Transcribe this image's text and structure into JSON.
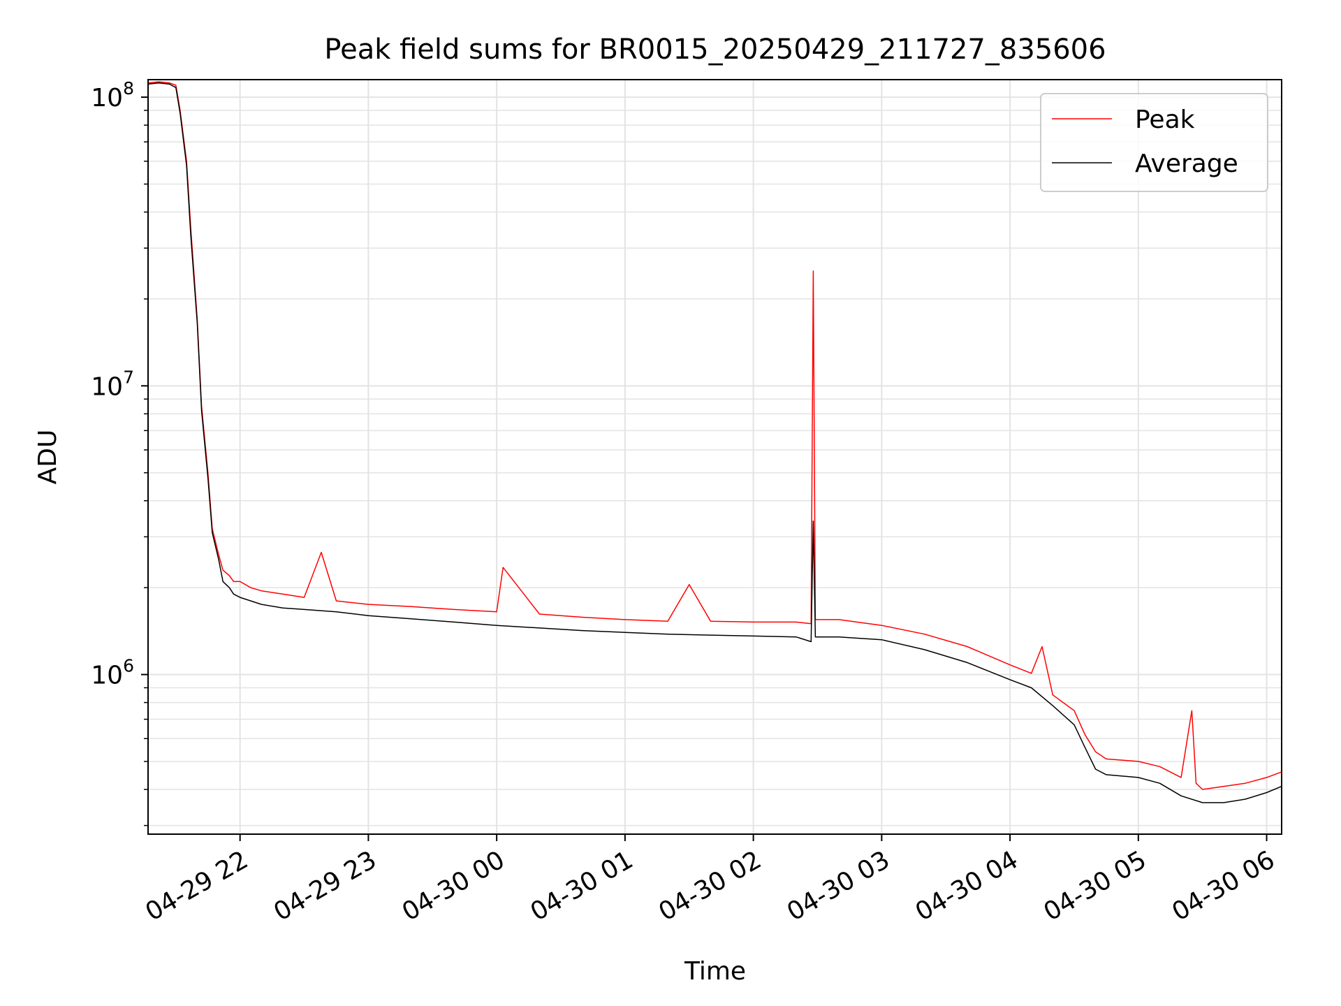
{
  "chart_data": {
    "type": "line",
    "title": "Peak field sums for BR0015_20250429_211727_835606",
    "xlabel": "Time",
    "ylabel": "ADU",
    "yscale": "log",
    "grid": true,
    "legend_placement": "top-right",
    "xlim": [
      "2025-04-29 21:17",
      "2025-04-30 06:07"
    ],
    "ylim": [
      280000,
      115000000
    ],
    "x_ticks": [
      {
        "value": "2025-04-29 22:00",
        "label": "04-29 22"
      },
      {
        "value": "2025-04-29 23:00",
        "label": "04-29 23"
      },
      {
        "value": "2025-04-30 00:00",
        "label": "04-30 00"
      },
      {
        "value": "2025-04-30 01:00",
        "label": "04-30 01"
      },
      {
        "value": "2025-04-30 02:00",
        "label": "04-30 02"
      },
      {
        "value": "2025-04-30 03:00",
        "label": "04-30 03"
      },
      {
        "value": "2025-04-30 04:00",
        "label": "04-30 04"
      },
      {
        "value": "2025-04-30 05:00",
        "label": "04-30 05"
      },
      {
        "value": "2025-04-30 06:00",
        "label": "04-30 06"
      }
    ],
    "y_ticks": [
      {
        "value": 1000000,
        "base": "10",
        "exp": "6"
      },
      {
        "value": 10000000,
        "base": "10",
        "exp": "7"
      },
      {
        "value": 100000000,
        "base": "10",
        "exp": "8"
      }
    ],
    "series": [
      {
        "name": "Peak",
        "color": "#ff0000",
        "x": [
          "2025-04-29 21:17",
          "2025-04-29 21:22",
          "2025-04-29 21:27",
          "2025-04-29 21:30",
          "2025-04-29 21:32",
          "2025-04-29 21:35",
          "2025-04-29 21:37",
          "2025-04-29 21:40",
          "2025-04-29 21:42",
          "2025-04-29 21:45",
          "2025-04-29 21:47",
          "2025-04-29 21:50",
          "2025-04-29 21:52",
          "2025-04-29 21:55",
          "2025-04-29 21:57",
          "2025-04-29 22:00",
          "2025-04-29 22:05",
          "2025-04-29 22:10",
          "2025-04-29 22:20",
          "2025-04-29 22:30",
          "2025-04-29 22:38",
          "2025-04-29 22:45",
          "2025-04-29 23:00",
          "2025-04-29 23:20",
          "2025-04-29 23:40",
          "2025-04-30 00:00",
          "2025-04-30 00:03",
          "2025-04-30 00:20",
          "2025-04-30 00:40",
          "2025-04-30 01:00",
          "2025-04-30 01:20",
          "2025-04-30 01:30",
          "2025-04-30 01:40",
          "2025-04-30 02:00",
          "2025-04-30 02:20",
          "2025-04-30 02:27",
          "2025-04-30 02:28",
          "2025-04-30 02:29",
          "2025-04-30 02:40",
          "2025-04-30 03:00",
          "2025-04-30 03:20",
          "2025-04-30 03:40",
          "2025-04-30 04:00",
          "2025-04-30 04:10",
          "2025-04-30 04:15",
          "2025-04-30 04:20",
          "2025-04-30 04:30",
          "2025-04-30 04:35",
          "2025-04-30 04:40",
          "2025-04-30 04:45",
          "2025-04-30 05:00",
          "2025-04-30 05:10",
          "2025-04-30 05:20",
          "2025-04-30 05:25",
          "2025-04-30 05:27",
          "2025-04-30 05:30",
          "2025-04-30 05:40",
          "2025-04-30 05:50",
          "2025-04-30 06:00",
          "2025-04-30 06:07"
        ],
        "y": [
          112000000,
          113000000,
          112000000,
          110000000,
          90000000,
          60000000,
          35000000,
          17000000,
          8500000,
          5000000,
          3200000,
          2600000,
          2300000,
          2200000,
          2100000,
          2100000,
          2000000,
          1950000,
          1900000,
          1850000,
          2650000,
          1800000,
          1750000,
          1720000,
          1680000,
          1650000,
          2350000,
          1620000,
          1580000,
          1550000,
          1530000,
          2050000,
          1530000,
          1520000,
          1520000,
          1500000,
          25000000,
          1550000,
          1550000,
          1480000,
          1380000,
          1250000,
          1080000,
          1010000,
          1250000,
          850000,
          750000,
          620000,
          540000,
          510000,
          500000,
          480000,
          440000,
          750000,
          420000,
          400000,
          410000,
          420000,
          440000,
          460000
        ]
      },
      {
        "name": "Average",
        "color": "#000000",
        "x": [
          "2025-04-29 21:17",
          "2025-04-29 21:22",
          "2025-04-29 21:27",
          "2025-04-29 21:30",
          "2025-04-29 21:32",
          "2025-04-29 21:35",
          "2025-04-29 21:37",
          "2025-04-29 21:40",
          "2025-04-29 21:42",
          "2025-04-29 21:45",
          "2025-04-29 21:47",
          "2025-04-29 21:50",
          "2025-04-29 21:52",
          "2025-04-29 21:55",
          "2025-04-29 21:57",
          "2025-04-29 22:00",
          "2025-04-29 22:05",
          "2025-04-29 22:10",
          "2025-04-29 22:20",
          "2025-04-29 22:30",
          "2025-04-29 22:45",
          "2025-04-29 23:00",
          "2025-04-29 23:20",
          "2025-04-29 23:40",
          "2025-04-30 00:00",
          "2025-04-30 00:20",
          "2025-04-30 00:40",
          "2025-04-30 01:00",
          "2025-04-30 01:20",
          "2025-04-30 01:40",
          "2025-04-30 02:00",
          "2025-04-30 02:20",
          "2025-04-30 02:27",
          "2025-04-30 02:28",
          "2025-04-30 02:29",
          "2025-04-30 02:40",
          "2025-04-30 03:00",
          "2025-04-30 03:20",
          "2025-04-30 03:40",
          "2025-04-30 04:00",
          "2025-04-30 04:10",
          "2025-04-30 04:20",
          "2025-04-30 04:30",
          "2025-04-30 04:35",
          "2025-04-30 04:40",
          "2025-04-30 04:45",
          "2025-04-30 05:00",
          "2025-04-30 05:10",
          "2025-04-30 05:20",
          "2025-04-30 05:30",
          "2025-04-30 05:40",
          "2025-04-30 05:50",
          "2025-04-30 06:00",
          "2025-04-30 06:07"
        ],
        "y": [
          111000000,
          112000000,
          111000000,
          108000000,
          88000000,
          58000000,
          33000000,
          16500000,
          8200000,
          4800000,
          3100000,
          2500000,
          2100000,
          2000000,
          1900000,
          1850000,
          1800000,
          1750000,
          1700000,
          1680000,
          1650000,
          1600000,
          1560000,
          1520000,
          1480000,
          1450000,
          1420000,
          1400000,
          1380000,
          1370000,
          1360000,
          1350000,
          1300000,
          3400000,
          1350000,
          1350000,
          1320000,
          1220000,
          1100000,
          960000,
          900000,
          780000,
          670000,
          560000,
          470000,
          450000,
          440000,
          420000,
          380000,
          360000,
          360000,
          370000,
          390000,
          410000
        ]
      }
    ]
  }
}
